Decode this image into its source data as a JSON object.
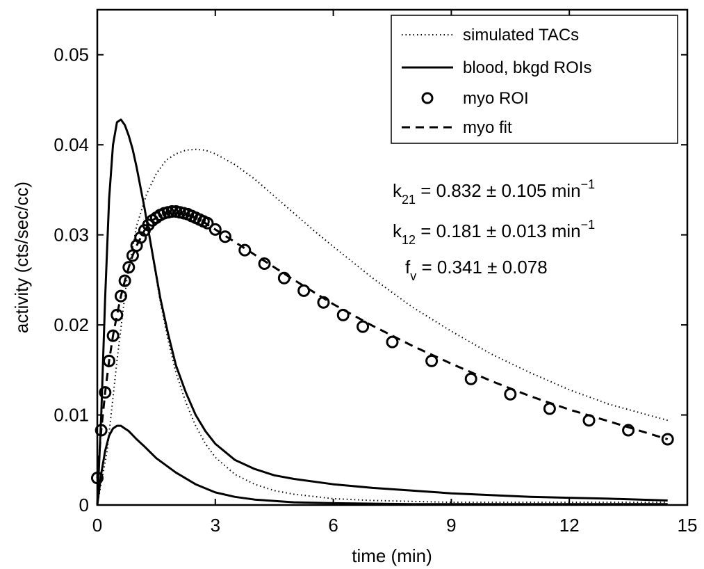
{
  "chart_data": {
    "type": "line",
    "xlabel": "time (min)",
    "ylabel": "activity (cts/sec/cc)",
    "xlim": [
      0,
      15
    ],
    "ylim": [
      0,
      0.055
    ],
    "xticks": [
      0,
      3,
      6,
      9,
      12,
      15
    ],
    "xtick_labels": [
      "0",
      "3",
      "6",
      "9",
      "12",
      "15"
    ],
    "yticks": [
      0,
      0.01,
      0.02,
      0.03,
      0.04,
      0.05
    ],
    "ytick_labels": [
      "0",
      "0.01",
      "0.02",
      "0.03",
      "0.04",
      "0.05"
    ],
    "grid": false,
    "legend_position": "top-right",
    "legend": [
      {
        "label": "simulated TACs",
        "style": "dotted"
      },
      {
        "label": "blood, bkgd ROIs",
        "style": "solid"
      },
      {
        "label": "myo ROI",
        "style": "circle"
      },
      {
        "label": "myo fit",
        "style": "dashed"
      }
    ],
    "annotations": [
      {
        "lead": "k",
        "sub": "21",
        "text": " = 0.832 ± 0.105 min",
        "sup": "−1"
      },
      {
        "lead": "k",
        "sub": "12",
        "text": " = 0.181 ± 0.013 min",
        "sup": "−1"
      },
      {
        "lead": "f",
        "sub": "v",
        "text": " = 0.341 ± 0.078",
        "sup": ""
      }
    ],
    "series": [
      {
        "name": "blood",
        "style": "solid",
        "x": [
          0,
          0.1,
          0.2,
          0.3,
          0.4,
          0.5,
          0.6,
          0.7,
          0.8,
          0.9,
          1.0,
          1.2,
          1.4,
          1.6,
          1.8,
          2.0,
          2.25,
          2.5,
          2.75,
          3.0,
          3.5,
          4.0,
          4.5,
          5.0,
          6.0,
          7.0,
          8.0,
          9.0,
          10.0,
          11.0,
          12.0,
          13.0,
          14.5
        ],
        "values": [
          0,
          0.01,
          0.023,
          0.034,
          0.04,
          0.0425,
          0.0428,
          0.0422,
          0.041,
          0.0395,
          0.0375,
          0.033,
          0.028,
          0.023,
          0.019,
          0.0155,
          0.0125,
          0.01,
          0.0082,
          0.0068,
          0.005,
          0.004,
          0.0033,
          0.0029,
          0.0023,
          0.0019,
          0.0016,
          0.0013,
          0.0011,
          0.0009,
          0.0008,
          0.0007,
          0.0005
        ]
      },
      {
        "name": "bkgd",
        "style": "solid",
        "x": [
          0,
          0.1,
          0.2,
          0.3,
          0.4,
          0.5,
          0.6,
          0.7,
          0.8,
          1.0,
          1.2,
          1.5,
          2.0,
          2.5,
          3.0,
          3.5,
          4.0,
          5.0,
          6.0,
          8.0,
          10.0,
          12.0,
          14.5
        ],
        "values": [
          0,
          0.0035,
          0.006,
          0.0077,
          0.0085,
          0.0088,
          0.0088,
          0.0085,
          0.0082,
          0.0073,
          0.0065,
          0.0052,
          0.0036,
          0.0023,
          0.0014,
          0.0009,
          0.0006,
          0.0003,
          0.0002,
          0.0001,
          0.0001,
          0.0001,
          0.0001
        ]
      },
      {
        "name": "simulated TACs",
        "style": "dotted",
        "x": [
          0,
          0.25,
          0.5,
          0.75,
          1.0,
          1.25,
          1.5,
          1.75,
          2.0,
          2.25,
          2.5,
          2.75,
          3.0,
          3.5,
          4.0,
          4.5,
          5.0,
          5.5,
          6.0,
          7.0,
          8.0,
          9.0,
          10.0,
          11.0,
          12.0,
          13.0,
          14.5
        ],
        "values": [
          0,
          0.006,
          0.016,
          0.025,
          0.031,
          0.0345,
          0.0368,
          0.0383,
          0.039,
          0.0394,
          0.0395,
          0.0394,
          0.039,
          0.0378,
          0.0362,
          0.0343,
          0.0324,
          0.0305,
          0.0287,
          0.0252,
          0.022,
          0.0193,
          0.0168,
          0.0147,
          0.0128,
          0.0112,
          0.0094
        ]
      },
      {
        "name": "simulated TACs",
        "style": "dotted",
        "x": [
          0,
          0.1,
          0.2,
          0.3,
          0.4,
          0.5,
          0.6,
          0.7,
          0.8,
          0.9,
          1.0,
          1.2,
          1.4,
          1.6,
          1.8,
          2.0,
          2.25,
          2.5,
          2.75,
          3.0,
          3.5,
          4.0,
          4.5,
          5.0,
          6.0,
          7.0,
          8.0,
          9.0,
          10.0,
          11.0,
          12.0,
          13.0,
          14.5
        ],
        "values": [
          0,
          0.01,
          0.023,
          0.034,
          0.04,
          0.0425,
          0.0428,
          0.0422,
          0.041,
          0.0395,
          0.0375,
          0.033,
          0.0278,
          0.0226,
          0.0183,
          0.0147,
          0.0114,
          0.0088,
          0.0068,
          0.0053,
          0.0034,
          0.0023,
          0.0016,
          0.0012,
          0.0007,
          0.0005,
          0.0004,
          0.0003,
          0.0003,
          0.0003,
          0.0003,
          0.0003,
          0.0003
        ]
      },
      {
        "name": "myo fit",
        "style": "dashed",
        "x": [
          0,
          0.1,
          0.2,
          0.3,
          0.4,
          0.5,
          0.6,
          0.7,
          0.8,
          0.9,
          1.0,
          1.2,
          1.4,
          1.6,
          1.8,
          2.0,
          2.2,
          2.5,
          2.75,
          3.0,
          3.5,
          4.0,
          5.0,
          6.0,
          7.0,
          8.0,
          9.0,
          10.0,
          11.0,
          12.0,
          13.0,
          14.5
        ],
        "values": [
          0.003,
          0.0083,
          0.0125,
          0.016,
          0.0188,
          0.0211,
          0.0232,
          0.0249,
          0.0264,
          0.0277,
          0.0288,
          0.0305,
          0.0316,
          0.0322,
          0.0325,
          0.0325,
          0.0323,
          0.0319,
          0.0313,
          0.0306,
          0.0292,
          0.0278,
          0.025,
          0.0223,
          0.0199,
          0.0177,
          0.0157,
          0.0138,
          0.0121,
          0.0106,
          0.0093,
          0.0073
        ]
      },
      {
        "name": "myo ROI",
        "style": "circle",
        "x": [
          0.0,
          0.1,
          0.2,
          0.3,
          0.4,
          0.5,
          0.6,
          0.7,
          0.8,
          0.9,
          1.0,
          1.1,
          1.2,
          1.3,
          1.4,
          1.5,
          1.6,
          1.7,
          1.8,
          1.9,
          2.0,
          2.1,
          2.2,
          2.3,
          2.4,
          2.5,
          2.6,
          2.7,
          2.8,
          3.0,
          3.25,
          3.75,
          4.25,
          4.75,
          5.25,
          5.75,
          6.25,
          6.75,
          7.5,
          8.5,
          9.5,
          10.5,
          11.5,
          12.5,
          13.5,
          14.5
        ],
        "values": [
          0.003,
          0.0083,
          0.0125,
          0.016,
          0.0188,
          0.0211,
          0.0232,
          0.0249,
          0.0264,
          0.0277,
          0.0288,
          0.0297,
          0.0305,
          0.0311,
          0.0316,
          0.0319,
          0.0322,
          0.0324,
          0.0325,
          0.0326,
          0.0326,
          0.0325,
          0.0324,
          0.0323,
          0.0321,
          0.0319,
          0.0317,
          0.0315,
          0.0313,
          0.0306,
          0.0298,
          0.0283,
          0.0268,
          0.0252,
          0.0238,
          0.0225,
          0.0211,
          0.0198,
          0.0181,
          0.016,
          0.014,
          0.0123,
          0.0107,
          0.0094,
          0.0083,
          0.0073
        ]
      }
    ]
  }
}
